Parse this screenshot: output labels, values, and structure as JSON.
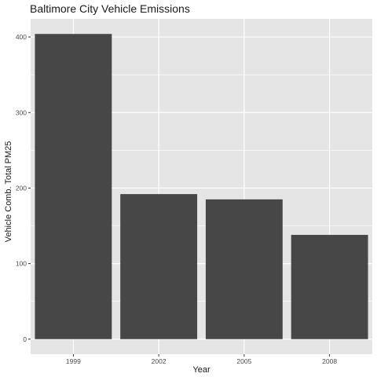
{
  "chart_data": {
    "type": "bar",
    "title": "Baltimore City Vehicle Emissions",
    "xlabel": "Year",
    "ylabel": "Vehicle Comb. Total PM25",
    "categories": [
      "1999",
      "2002",
      "2005",
      "2008"
    ],
    "values": [
      404,
      192,
      185,
      138
    ],
    "ylim": [
      -20,
      424
    ],
    "yticks": [
      0,
      100,
      200,
      300,
      400
    ],
    "grid": true,
    "colors": {
      "panel": "#e5e5e5",
      "gridline": "#ffffff",
      "bar": "#474747",
      "tick": "#333333"
    }
  }
}
